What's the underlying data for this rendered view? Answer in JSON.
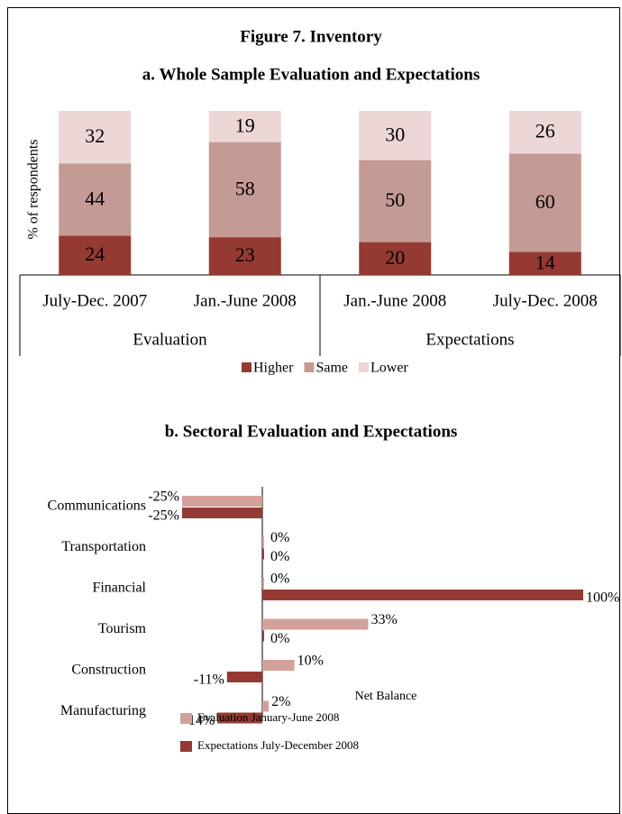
{
  "title": "Figure 7. Inventory",
  "chart_data": [
    {
      "type": "stacked_bar",
      "title": "a. Whole Sample Evaluation and Expectations",
      "y_label": "% of respondents",
      "groups": [
        {
          "name": "Evaluation",
          "categories": [
            "July-Dec. 2007",
            "Jan.-June 2008"
          ]
        },
        {
          "name": "Expectations",
          "categories": [
            "Jan.-June 2008",
            "July-Dec. 2008"
          ]
        }
      ],
      "series": [
        {
          "name": "Higher",
          "color": "#943a33",
          "values": [
            24,
            23,
            20,
            14
          ]
        },
        {
          "name": "Same",
          "color": "#c49a95",
          "values": [
            44,
            58,
            50,
            60
          ]
        },
        {
          "name": "Lower",
          "color": "#ecd7d6",
          "values": [
            32,
            19,
            30,
            26
          ]
        }
      ],
      "ylim": [
        0,
        100
      ]
    },
    {
      "type": "hbar",
      "title": "b. Sectoral Evaluation and Expectations",
      "x_label": "Net Balance",
      "categories": [
        "Communications",
        "Transportation",
        "Financial",
        "Tourism",
        "Construction",
        "Manufacturing"
      ],
      "series": [
        {
          "name": "Evaluation  January-June 2008",
          "color": "#d4a09b",
          "values": [
            -25,
            0,
            0,
            33,
            10,
            2
          ],
          "value_labels": [
            "-25%",
            "0%",
            "0%",
            "33%",
            "10%",
            "2%"
          ]
        },
        {
          "name": "Expectations July-December 2008",
          "color": "#943a33",
          "values": [
            -25,
            0,
            100,
            0,
            -11,
            -14
          ],
          "value_labels": [
            "-25%",
            "0%",
            "100%",
            "0%",
            "-11%",
            "-14%"
          ]
        }
      ],
      "xlim": [
        -25,
        100
      ]
    }
  ]
}
